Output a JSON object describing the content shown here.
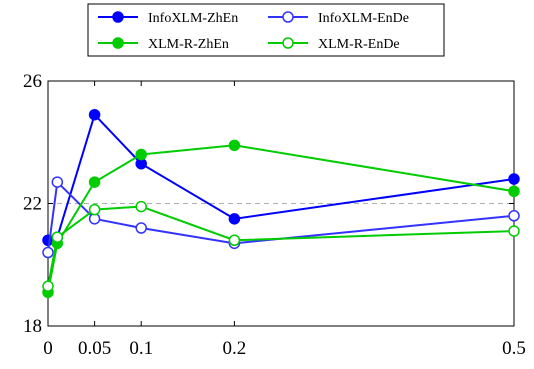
{
  "chart_data": {
    "type": "line",
    "title": "",
    "xlabel": "",
    "ylabel": "",
    "x": [
      0,
      0.01,
      0.05,
      0.1,
      0.2,
      0.5
    ],
    "xticks": [
      0,
      0.05,
      0.1,
      0.2,
      0.5
    ],
    "xtick_labels": [
      "0",
      "0.05",
      "0.1",
      "0.2",
      "0.5"
    ],
    "yticks": [
      18,
      22,
      26
    ],
    "ytick_labels": [
      "18",
      "22",
      "26"
    ],
    "xlim": [
      0,
      0.5
    ],
    "ylim": [
      18,
      26
    ],
    "reference_line": 22,
    "legend_position": "top-center",
    "series": [
      {
        "name": "InfoXLM-ZhEn",
        "color": "#0000ff",
        "filled": true,
        "values": [
          20.8,
          20.9,
          24.9,
          23.3,
          21.5,
          22.8
        ]
      },
      {
        "name": "InfoXLM-EnDe",
        "color": "#3333ff",
        "filled": false,
        "values": [
          20.4,
          22.7,
          21.5,
          21.2,
          20.7,
          21.6
        ]
      },
      {
        "name": "XLM-R-ZhEn",
        "color": "#00cc00",
        "filled": true,
        "values": [
          19.1,
          20.7,
          22.7,
          23.6,
          23.9,
          22.4
        ]
      },
      {
        "name": "XLM-R-EnDe",
        "color": "#00cc00",
        "filled": false,
        "values": [
          19.3,
          20.9,
          21.8,
          21.9,
          20.8,
          21.1
        ]
      }
    ]
  }
}
